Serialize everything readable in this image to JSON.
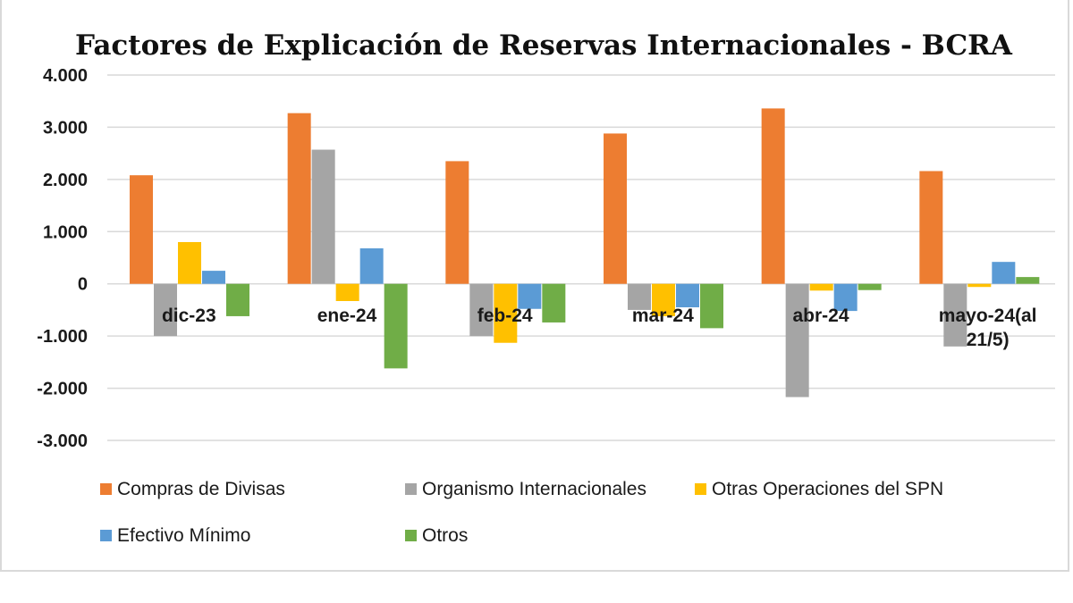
{
  "chart_data": {
    "type": "bar",
    "title": "Factores de Explicación  de Reservas Internacionales - BCRA",
    "categories": [
      "dic-23",
      "ene-24",
      "feb-24",
      "mar-24",
      "abr-24",
      "mayo-24(al 21/5)"
    ],
    "category_lines": [
      [
        "dic-23"
      ],
      [
        "ene-24"
      ],
      [
        "feb-24"
      ],
      [
        "mar-24"
      ],
      [
        "abr-24"
      ],
      [
        "mayo-24(al",
        "21/5)"
      ]
    ],
    "series": [
      {
        "name": "Compras de Divisas",
        "color": "#ED7D31",
        "values": [
          2080,
          3270,
          2350,
          2880,
          3360,
          2160
        ]
      },
      {
        "name": "Organismo Internacionales",
        "color": "#A5A5A5",
        "values": [
          -1000,
          2570,
          -1000,
          -500,
          -2170,
          -1200
        ]
      },
      {
        "name": "Otras Operaciones del SPN",
        "color": "#FFC000",
        "values": [
          800,
          -330,
          -1130,
          -620,
          -130,
          -60
        ]
      },
      {
        "name": "Efectivo Mínimo",
        "color": "#5B9BD5",
        "values": [
          250,
          680,
          -480,
          -450,
          -520,
          420
        ]
      },
      {
        "name": "Otros",
        "color": "#70AD47",
        "values": [
          -620,
          -1620,
          -740,
          -850,
          -120,
          130
        ]
      }
    ],
    "ylim": [
      -3000,
      4000
    ],
    "yticks": [
      4000,
      3000,
      2000,
      1000,
      0,
      -1000,
      -2000,
      -3000
    ],
    "ytick_labels": [
      "4.000",
      "3.000",
      "2.000",
      "1.000",
      "0",
      "-1.000",
      "-2.000",
      "-3.000"
    ],
    "xlabel": "",
    "ylabel": "",
    "grid": true,
    "legend_position": "bottom"
  }
}
